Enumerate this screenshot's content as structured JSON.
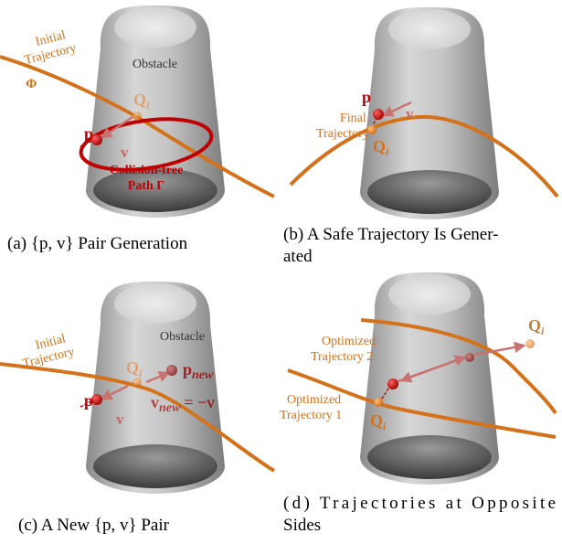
{
  "panels": [
    {
      "caption": "(a) {p, v} Pair Generation",
      "labels": {
        "initial": "Initial",
        "trajectory": "Trajectory",
        "phi": "Φ",
        "obstacle": "Obstacle",
        "q": "Q",
        "q_sub": "i",
        "p": "p",
        "v": "v",
        "path_line1": "Collision-free",
        "path_line2": "Path Γ"
      }
    },
    {
      "caption_lines": [
        "(b) A Safe Trajectory Is Gener-",
        "ated"
      ],
      "labels": {
        "p": "p",
        "v": "v",
        "final": "Final",
        "trajectory": "Trajectory",
        "q": "Q",
        "q_sub": "i"
      }
    },
    {
      "caption": "(c) A New {p, v} Pair",
      "labels": {
        "initial": "Initial",
        "trajectory": "Trajectory",
        "obstacle": "Obstacle",
        "q": "Q",
        "q_sub": "i",
        "p": "p",
        "v": "v",
        "p_new": "p",
        "p_new_sub": "new",
        "v_new": "v",
        "v_new_sub": "new",
        "v_new_eq": "= −v"
      }
    },
    {
      "caption_lines": [
        "(d) Trajectories at Opposite",
        "Sides"
      ],
      "labels": {
        "optimized_2": "Optimized",
        "trajectory_2": "Trajectory 2",
        "q_top": "Q",
        "q_top_sub": "i",
        "optimized_1": "Optimized",
        "trajectory_1": "Trajectory 1",
        "q_bottom": "Q",
        "q_bottom_sub": "i"
      }
    }
  ]
}
